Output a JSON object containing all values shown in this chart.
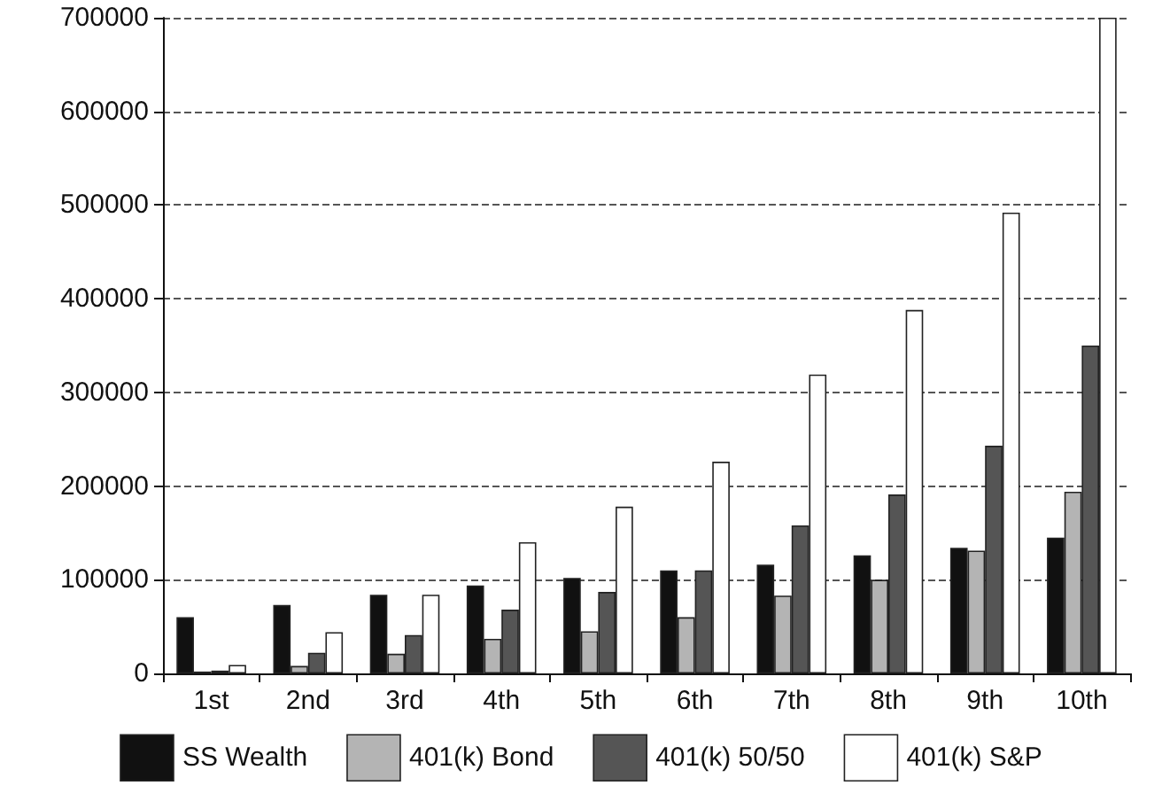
{
  "chart_data": {
    "type": "bar",
    "categories": [
      "1st",
      "2nd",
      "3rd",
      "4th",
      "5th",
      "6th",
      "7th",
      "8th",
      "9th",
      "10th"
    ],
    "series": [
      {
        "name": "SS Wealth",
        "color": "#111111",
        "values": [
          60000,
          73000,
          84000,
          94000,
          102000,
          110000,
          116000,
          126000,
          134000,
          145000
        ]
      },
      {
        "name": "401(k) Bond",
        "color": "#b4b4b4",
        "values": [
          2000,
          8000,
          21000,
          37000,
          45000,
          60000,
          83000,
          100000,
          131000,
          194000
        ]
      },
      {
        "name": "401(k) 50/50",
        "color": "#555555",
        "values": [
          3000,
          22000,
          41000,
          68000,
          87000,
          110000,
          158000,
          191000,
          243000,
          350000
        ]
      },
      {
        "name": "401(k) S&P",
        "color": "#ffffff",
        "values": [
          9000,
          44000,
          84000,
          140000,
          178000,
          226000,
          319000,
          388000,
          492000,
          700000
        ]
      }
    ],
    "ylim": [
      0,
      700000
    ],
    "yticks": [
      0,
      100000,
      200000,
      300000,
      400000,
      500000,
      600000,
      700000
    ],
    "grid": "y",
    "legend": "bottom"
  }
}
